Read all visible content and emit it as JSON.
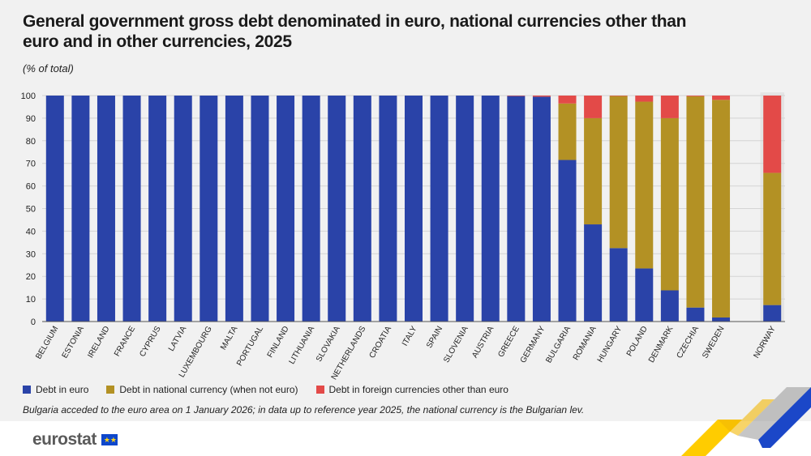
{
  "title": "General government gross debt denominated in euro, national currencies other than euro and in other currencies, 2025",
  "unit": "(% of total)",
  "note": "Bulgaria acceded to the euro area on 1 January 2026; in data up to reference year 2025, the national currency is the Bulgarian lev.",
  "logo_text": "eurostat",
  "colors": {
    "euro": "#2a43a8",
    "national": "#b39124",
    "foreign": "#e34a48",
    "grid": "#d4d4d4",
    "plot_bg": "#e4e4e4"
  },
  "chart_data": {
    "type": "bar",
    "stacked": true,
    "title": "General government gross debt denominated in euro, national currencies other than euro and in other currencies, 2025",
    "ylabel": "(% of total)",
    "ylim": [
      0,
      100
    ],
    "yticks": [
      0,
      10,
      20,
      30,
      40,
      50,
      60,
      70,
      80,
      90,
      100
    ],
    "grid": true,
    "legend_position": "bottom",
    "categories": [
      "BELGIUM",
      "ESTONIA",
      "IRELAND",
      "FRANCE",
      "CYPRUS",
      "LATVIA",
      "LUXEMBOURG",
      "MALTA",
      "PORTUGAL",
      "FINLAND",
      "LITHUANIA",
      "SLOVAKIA",
      "NETHERLANDS",
      "CROATIA",
      "ITALY",
      "SPAIN",
      "SLOVENIA",
      "AUSTRIA",
      "GREECE",
      "GERMANY",
      "BULGARIA",
      "ROMANIA",
      "HUNGARY",
      "POLAND",
      "DENMARK",
      "CZECHIA",
      "SWEDEN",
      "",
      "NORWAY"
    ],
    "series": [
      {
        "name": "Debt in euro",
        "values": [
          100,
          100,
          100,
          100,
          100,
          100,
          100,
          100,
          100,
          100,
          100,
          100,
          100,
          100,
          100,
          100,
          100,
          100,
          99.8,
          99.5,
          71.5,
          43,
          32.5,
          23.5,
          13.8,
          6.2,
          1.8,
          null,
          7.3
        ]
      },
      {
        "name": "Debt in national currency (when not euro)",
        "values": [
          0,
          0,
          0,
          0,
          0,
          0,
          0,
          0,
          0,
          0,
          0,
          0,
          0,
          0,
          0,
          0,
          0,
          0,
          0,
          0,
          25,
          47,
          67.3,
          73.8,
          76.2,
          93.5,
          96.3,
          null,
          58.5
        ]
      },
      {
        "name": "Debt in foreign currencies other than euro",
        "values": [
          0,
          0,
          0,
          0,
          0,
          0,
          0,
          0,
          0,
          0,
          0,
          0,
          0,
          0,
          0,
          0,
          0,
          0,
          0.2,
          0.5,
          3.5,
          10,
          0.2,
          2.7,
          10,
          0.3,
          1.9,
          null,
          34.2
        ]
      }
    ]
  }
}
